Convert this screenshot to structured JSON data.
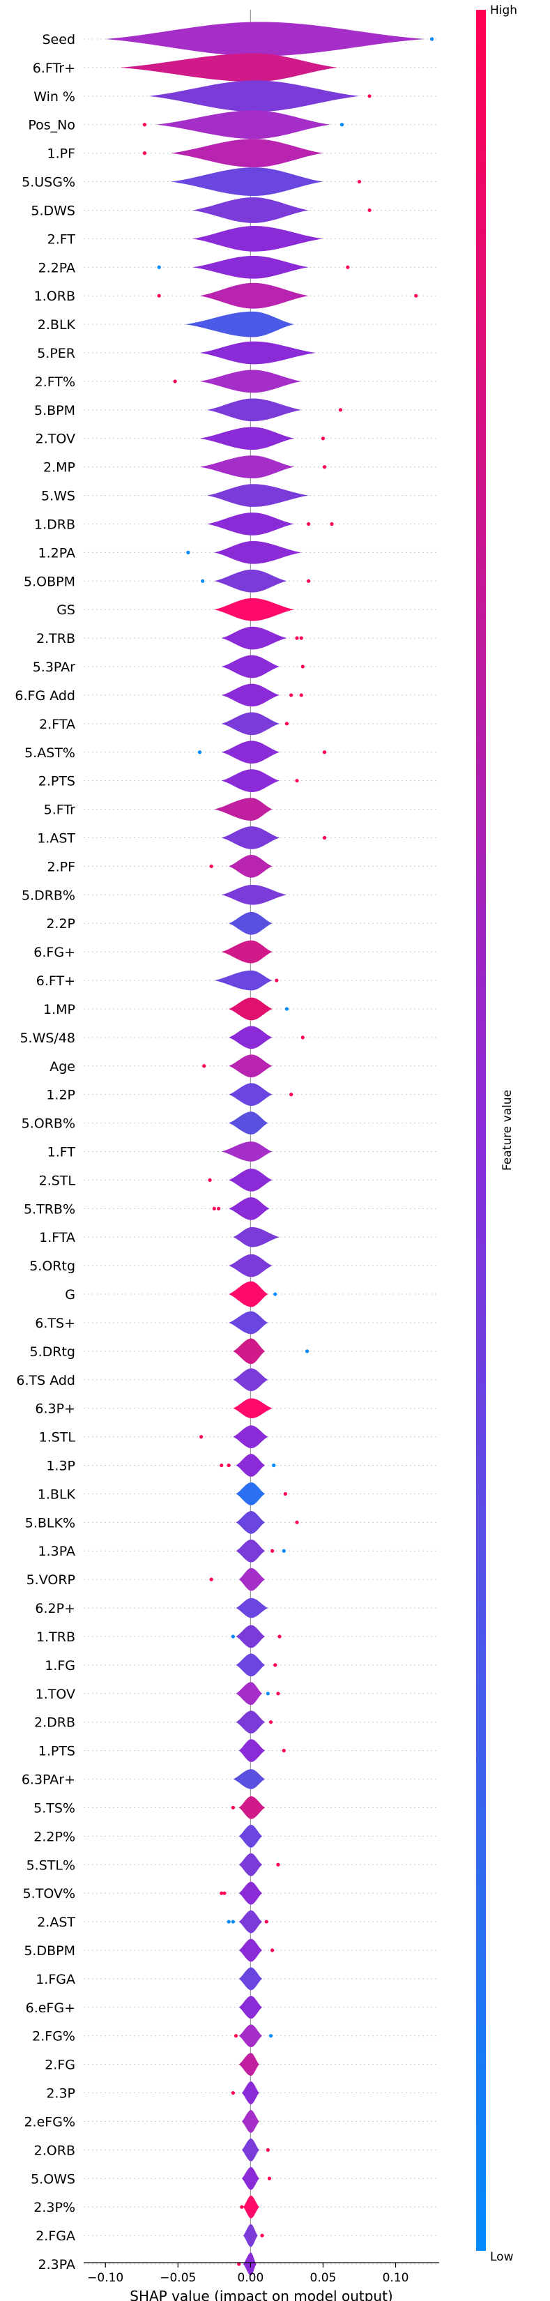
{
  "chart_data": {
    "type": "violin",
    "xlabel": "SHAP value (impact on model output)",
    "xlim": [
      -0.115,
      0.13
    ],
    "xticks": [
      -0.1,
      -0.05,
      0.0,
      0.05,
      0.1
    ],
    "xtick_labels": [
      "−0.10",
      "−0.05",
      "0.00",
      "0.05",
      "0.10"
    ],
    "colorbar": {
      "label": "Feature value",
      "high": "High",
      "low": "Low",
      "colors": {
        "low": "#008afb",
        "mid": "#8b2bd8",
        "high": "#ff0052"
      }
    },
    "features": [
      {
        "name": "Seed",
        "min": -0.1,
        "max": 0.12,
        "width": 0.6,
        "color": "#a52ec8",
        "outliers": [
          {
            "x": 0.125,
            "c": "#008afb"
          }
        ]
      },
      {
        "name": "6.FTr+",
        "min": -0.09,
        "max": 0.06,
        "width": 0.5,
        "color": "#d01a8a",
        "outliers": []
      },
      {
        "name": "Win %",
        "min": -0.07,
        "max": 0.075,
        "width": 0.55,
        "color": "#7a3bd8",
        "outliers": [
          {
            "x": 0.082,
            "c": "#ff0052"
          }
        ]
      },
      {
        "name": "Pos_No",
        "min": -0.065,
        "max": 0.055,
        "width": 0.5,
        "color": "#a52ec8",
        "outliers": [
          {
            "x": -0.073,
            "c": "#ff0052"
          },
          {
            "x": 0.063,
            "c": "#008afb"
          }
        ]
      },
      {
        "name": "1.PF",
        "min": -0.055,
        "max": 0.05,
        "width": 0.5,
        "color": "#b824b0",
        "outliers": [
          {
            "x": -0.073,
            "c": "#ff0052"
          }
        ]
      },
      {
        "name": "5.USG%",
        "min": -0.055,
        "max": 0.05,
        "width": 0.5,
        "color": "#6a45e0",
        "outliers": [
          {
            "x": 0.075,
            "c": "#ff0052"
          }
        ]
      },
      {
        "name": "5.DWS",
        "min": -0.04,
        "max": 0.04,
        "width": 0.45,
        "color": "#7a3bd8",
        "outliers": [
          {
            "x": 0.082,
            "c": "#ff0052"
          }
        ]
      },
      {
        "name": "2.FT",
        "min": -0.04,
        "max": 0.05,
        "width": 0.45,
        "color": "#8b2bd8",
        "outliers": []
      },
      {
        "name": "2.2PA",
        "min": -0.04,
        "max": 0.04,
        "width": 0.4,
        "color": "#8b2bd8",
        "outliers": [
          {
            "x": -0.063,
            "c": "#008afb"
          },
          {
            "x": 0.067,
            "c": "#ff0052"
          }
        ]
      },
      {
        "name": "1.ORB",
        "min": -0.035,
        "max": 0.04,
        "width": 0.45,
        "color": "#b824b0",
        "outliers": [
          {
            "x": -0.063,
            "c": "#ff0052"
          },
          {
            "x": 0.114,
            "c": "#ff0052"
          }
        ]
      },
      {
        "name": "2.BLK",
        "min": -0.045,
        "max": 0.03,
        "width": 0.45,
        "color": "#4b5be8",
        "outliers": []
      },
      {
        "name": "5.PER",
        "min": -0.035,
        "max": 0.045,
        "width": 0.4,
        "color": "#8b2bd8",
        "outliers": []
      },
      {
        "name": "2.FT%",
        "min": -0.035,
        "max": 0.035,
        "width": 0.4,
        "color": "#a52ec8",
        "outliers": [
          {
            "x": -0.052,
            "c": "#ff0052"
          }
        ]
      },
      {
        "name": "5.BPM",
        "min": -0.03,
        "max": 0.035,
        "width": 0.4,
        "color": "#7a3bd8",
        "outliers": [
          {
            "x": 0.062,
            "c": "#ff0052"
          }
        ]
      },
      {
        "name": "2.TOV",
        "min": -0.035,
        "max": 0.03,
        "width": 0.4,
        "color": "#8b2bd8",
        "outliers": [
          {
            "x": 0.05,
            "c": "#ff0052"
          }
        ]
      },
      {
        "name": "2.MP",
        "min": -0.035,
        "max": 0.03,
        "width": 0.4,
        "color": "#a52ec8",
        "outliers": [
          {
            "x": 0.051,
            "c": "#ff0052"
          }
        ]
      },
      {
        "name": "5.WS",
        "min": -0.03,
        "max": 0.04,
        "width": 0.4,
        "color": "#7a3bd8",
        "outliers": []
      },
      {
        "name": "1.DRB",
        "min": -0.03,
        "max": 0.03,
        "width": 0.4,
        "color": "#8b2bd8",
        "outliers": [
          {
            "x": 0.04,
            "c": "#ff0052"
          },
          {
            "x": 0.056,
            "c": "#ff0052"
          }
        ]
      },
      {
        "name": "1.2PA",
        "min": -0.025,
        "max": 0.035,
        "width": 0.4,
        "color": "#8b2bd8",
        "outliers": [
          {
            "x": -0.043,
            "c": "#008afb"
          }
        ]
      },
      {
        "name": "5.OBPM",
        "min": -0.025,
        "max": 0.025,
        "width": 0.4,
        "color": "#7a3bd8",
        "outliers": [
          {
            "x": -0.033,
            "c": "#008afb"
          },
          {
            "x": 0.04,
            "c": "#ff0052"
          }
        ]
      },
      {
        "name": "GS",
        "min": -0.025,
        "max": 0.03,
        "width": 0.4,
        "color": "#ff0a6a",
        "outliers": []
      },
      {
        "name": "2.TRB",
        "min": -0.02,
        "max": 0.025,
        "width": 0.4,
        "color": "#8b2bd8",
        "outliers": [
          {
            "x": 0.032,
            "c": "#ff0052"
          },
          {
            "x": 0.035,
            "c": "#ff0052"
          }
        ]
      },
      {
        "name": "5.3PAr",
        "min": -0.02,
        "max": 0.02,
        "width": 0.4,
        "color": "#8b2bd8",
        "outliers": [
          {
            "x": 0.036,
            "c": "#ff0052"
          }
        ]
      },
      {
        "name": "6.FG Add",
        "min": -0.02,
        "max": 0.02,
        "width": 0.4,
        "color": "#8b2bd8",
        "outliers": [
          {
            "x": 0.028,
            "c": "#ff0052"
          },
          {
            "x": 0.035,
            "c": "#ff0052"
          }
        ]
      },
      {
        "name": "2.FTA",
        "min": -0.02,
        "max": 0.02,
        "width": 0.4,
        "color": "#7a3bd8",
        "outliers": [
          {
            "x": 0.025,
            "c": "#ff0052"
          }
        ]
      },
      {
        "name": "5.AST%",
        "min": -0.02,
        "max": 0.02,
        "width": 0.4,
        "color": "#8b2bd8",
        "outliers": [
          {
            "x": -0.035,
            "c": "#008afb"
          },
          {
            "x": 0.051,
            "c": "#ff0052"
          }
        ]
      },
      {
        "name": "2.PTS",
        "min": -0.02,
        "max": 0.02,
        "width": 0.4,
        "color": "#8b2bd8",
        "outliers": [
          {
            "x": 0.032,
            "c": "#ff0052"
          }
        ]
      },
      {
        "name": "5.FTr",
        "min": -0.025,
        "max": 0.015,
        "width": 0.4,
        "color": "#c020a0",
        "outliers": []
      },
      {
        "name": "1.AST",
        "min": -0.02,
        "max": 0.02,
        "width": 0.4,
        "color": "#7a3bd8",
        "outliers": [
          {
            "x": 0.051,
            "c": "#ff0052"
          }
        ]
      },
      {
        "name": "2.PF",
        "min": -0.015,
        "max": 0.015,
        "width": 0.4,
        "color": "#b824b0",
        "outliers": [
          {
            "x": -0.027,
            "c": "#ff0052"
          }
        ]
      },
      {
        "name": "5.DRB%",
        "min": -0.02,
        "max": 0.025,
        "width": 0.35,
        "color": "#7a3bd8",
        "outliers": []
      },
      {
        "name": "2.2P",
        "min": -0.015,
        "max": 0.015,
        "width": 0.4,
        "color": "#5a50e0",
        "outliers": []
      },
      {
        "name": "6.FG+",
        "min": -0.02,
        "max": 0.015,
        "width": 0.4,
        "color": "#d01a8a",
        "outliers": []
      },
      {
        "name": "6.FT+",
        "min": -0.025,
        "max": 0.015,
        "width": 0.35,
        "color": "#6a45e0",
        "outliers": [
          {
            "x": 0.018,
            "c": "#ff0052"
          }
        ]
      },
      {
        "name": "1.MP",
        "min": -0.015,
        "max": 0.015,
        "width": 0.4,
        "color": "#e0106e",
        "outliers": [
          {
            "x": 0.025,
            "c": "#008afb"
          }
        ]
      },
      {
        "name": "5.WS/48",
        "min": -0.015,
        "max": 0.015,
        "width": 0.4,
        "color": "#8b2bd8",
        "outliers": [
          {
            "x": 0.036,
            "c": "#ff0052"
          }
        ]
      },
      {
        "name": "Age",
        "min": -0.015,
        "max": 0.015,
        "width": 0.4,
        "color": "#b824b0",
        "outliers": [
          {
            "x": -0.032,
            "c": "#ff0052"
          }
        ]
      },
      {
        "name": "1.2P",
        "min": -0.015,
        "max": 0.015,
        "width": 0.4,
        "color": "#6a45e0",
        "outliers": [
          {
            "x": 0.028,
            "c": "#ff0052"
          }
        ]
      },
      {
        "name": "5.ORB%",
        "min": -0.015,
        "max": 0.012,
        "width": 0.4,
        "color": "#5a50e0",
        "outliers": []
      },
      {
        "name": "1.FT",
        "min": -0.02,
        "max": 0.015,
        "width": 0.35,
        "color": "#a52ec8",
        "outliers": []
      },
      {
        "name": "2.STL",
        "min": -0.015,
        "max": 0.015,
        "width": 0.4,
        "color": "#8b2bd8",
        "outliers": [
          {
            "x": -0.028,
            "c": "#ff0052"
          }
        ]
      },
      {
        "name": "5.TRB%",
        "min": -0.015,
        "max": 0.013,
        "width": 0.4,
        "color": "#8b2bd8",
        "outliers": [
          {
            "x": -0.025,
            "c": "#ff0052"
          },
          {
            "x": -0.022,
            "c": "#ff0052"
          }
        ]
      },
      {
        "name": "1.FTA",
        "min": -0.012,
        "max": 0.02,
        "width": 0.35,
        "color": "#7a3bd8",
        "outliers": []
      },
      {
        "name": "5.ORtg",
        "min": -0.015,
        "max": 0.015,
        "width": 0.4,
        "color": "#7a3bd8",
        "outliers": []
      },
      {
        "name": "G",
        "min": -0.015,
        "max": 0.012,
        "width": 0.45,
        "color": "#ff0a6a",
        "outliers": [
          {
            "x": 0.017,
            "c": "#008afb"
          }
        ]
      },
      {
        "name": "6.TS+",
        "min": -0.015,
        "max": 0.012,
        "width": 0.4,
        "color": "#6a45e0",
        "outliers": []
      },
      {
        "name": "5.DRtg",
        "min": -0.012,
        "max": 0.01,
        "width": 0.45,
        "color": "#d01a8a",
        "outliers": [
          {
            "x": 0.039,
            "c": "#008afb"
          }
        ]
      },
      {
        "name": "6.TS Add",
        "min": -0.012,
        "max": 0.012,
        "width": 0.4,
        "color": "#7a3bd8",
        "outliers": []
      },
      {
        "name": "6.3P+",
        "min": -0.012,
        "max": 0.015,
        "width": 0.35,
        "color": "#ff0a6a",
        "outliers": []
      },
      {
        "name": "1.STL",
        "min": -0.012,
        "max": 0.012,
        "width": 0.4,
        "color": "#8b2bd8",
        "outliers": [
          {
            "x": -0.034,
            "c": "#ff0052"
          }
        ]
      },
      {
        "name": "1.3P",
        "min": -0.01,
        "max": 0.01,
        "width": 0.4,
        "color": "#8b2bd8",
        "outliers": [
          {
            "x": -0.02,
            "c": "#ff0052"
          },
          {
            "x": -0.015,
            "c": "#ff0052"
          },
          {
            "x": 0.016,
            "c": "#008afb"
          }
        ]
      },
      {
        "name": "1.BLK",
        "min": -0.01,
        "max": 0.01,
        "width": 0.4,
        "color": "#2a70f0",
        "outliers": [
          {
            "x": 0.024,
            "c": "#ff0052"
          }
        ]
      },
      {
        "name": "5.BLK%",
        "min": -0.01,
        "max": 0.01,
        "width": 0.4,
        "color": "#6a45e0",
        "outliers": [
          {
            "x": 0.032,
            "c": "#ff0052"
          }
        ]
      },
      {
        "name": "1.3PA",
        "min": -0.01,
        "max": 0.01,
        "width": 0.4,
        "color": "#7a3bd8",
        "outliers": [
          {
            "x": 0.015,
            "c": "#ff0052"
          },
          {
            "x": 0.023,
            "c": "#008afb"
          }
        ]
      },
      {
        "name": "5.VORP",
        "min": -0.008,
        "max": 0.01,
        "width": 0.4,
        "color": "#a52ec8",
        "outliers": [
          {
            "x": -0.027,
            "c": "#ff0052"
          }
        ]
      },
      {
        "name": "6.2P+",
        "min": -0.01,
        "max": 0.012,
        "width": 0.35,
        "color": "#6a45e0",
        "outliers": []
      },
      {
        "name": "1.TRB",
        "min": -0.01,
        "max": 0.01,
        "width": 0.4,
        "color": "#7a3bd8",
        "outliers": [
          {
            "x": -0.012,
            "c": "#008afb"
          },
          {
            "x": 0.02,
            "c": "#ff0052"
          }
        ]
      },
      {
        "name": "1.FG",
        "min": -0.01,
        "max": 0.01,
        "width": 0.4,
        "color": "#6a45e0",
        "outliers": [
          {
            "x": 0.017,
            "c": "#ff0052"
          }
        ]
      },
      {
        "name": "1.TOV",
        "min": -0.01,
        "max": 0.008,
        "width": 0.4,
        "color": "#a52ec8",
        "outliers": [
          {
            "x": 0.012,
            "c": "#008afb"
          },
          {
            "x": 0.019,
            "c": "#ff0052"
          }
        ]
      },
      {
        "name": "2.DRB",
        "min": -0.01,
        "max": 0.01,
        "width": 0.4,
        "color": "#7a3bd8",
        "outliers": [
          {
            "x": 0.014,
            "c": "#ff0052"
          }
        ]
      },
      {
        "name": "1.PTS",
        "min": -0.008,
        "max": 0.01,
        "width": 0.4,
        "color": "#8b2bd8",
        "outliers": [
          {
            "x": 0.023,
            "c": "#ff0052"
          }
        ]
      },
      {
        "name": "6.3PAr+",
        "min": -0.012,
        "max": 0.01,
        "width": 0.35,
        "color": "#5a50e0",
        "outliers": []
      },
      {
        "name": "5.TS%",
        "min": -0.008,
        "max": 0.01,
        "width": 0.4,
        "color": "#d01a8a",
        "outliers": [
          {
            "x": -0.012,
            "c": "#ff0052"
          }
        ]
      },
      {
        "name": "2.2P%",
        "min": -0.008,
        "max": 0.008,
        "width": 0.4,
        "color": "#6a45e0",
        "outliers": []
      },
      {
        "name": "5.STL%",
        "min": -0.008,
        "max": 0.008,
        "width": 0.4,
        "color": "#7a3bd8",
        "outliers": [
          {
            "x": 0.019,
            "c": "#ff0052"
          }
        ]
      },
      {
        "name": "5.TOV%",
        "min": -0.008,
        "max": 0.008,
        "width": 0.4,
        "color": "#8b2bd8",
        "outliers": [
          {
            "x": -0.02,
            "c": "#ff0052"
          },
          {
            "x": -0.018,
            "c": "#ff0052"
          }
        ]
      },
      {
        "name": "2.AST",
        "min": -0.008,
        "max": 0.008,
        "width": 0.4,
        "color": "#7a3bd8",
        "outliers": [
          {
            "x": -0.015,
            "c": "#008afb"
          },
          {
            "x": -0.012,
            "c": "#008afb"
          },
          {
            "x": 0.011,
            "c": "#ff0052"
          }
        ]
      },
      {
        "name": "5.DBPM",
        "min": -0.008,
        "max": 0.008,
        "width": 0.4,
        "color": "#8b2bd8",
        "outliers": [
          {
            "x": 0.015,
            "c": "#ff0052"
          }
        ]
      },
      {
        "name": "1.FGA",
        "min": -0.008,
        "max": 0.008,
        "width": 0.4,
        "color": "#6a45e0",
        "outliers": []
      },
      {
        "name": "6.eFG+",
        "min": -0.008,
        "max": 0.008,
        "width": 0.4,
        "color": "#8b2bd8",
        "outliers": []
      },
      {
        "name": "2.FG%",
        "min": -0.008,
        "max": 0.008,
        "width": 0.4,
        "color": "#a52ec8",
        "outliers": [
          {
            "x": -0.01,
            "c": "#ff0052"
          },
          {
            "x": 0.014,
            "c": "#008afb"
          }
        ]
      },
      {
        "name": "2.FG",
        "min": -0.008,
        "max": 0.006,
        "width": 0.4,
        "color": "#c020a0",
        "outliers": []
      },
      {
        "name": "2.3P",
        "min": -0.006,
        "max": 0.006,
        "width": 0.4,
        "color": "#8b2bd8",
        "outliers": [
          {
            "x": -0.012,
            "c": "#ff0052"
          }
        ]
      },
      {
        "name": "2.eFG%",
        "min": -0.006,
        "max": 0.006,
        "width": 0.4,
        "color": "#a52ec8",
        "outliers": []
      },
      {
        "name": "2.ORB",
        "min": -0.006,
        "max": 0.006,
        "width": 0.4,
        "color": "#7a3bd8",
        "outliers": [
          {
            "x": 0.012,
            "c": "#ff0052"
          }
        ]
      },
      {
        "name": "5.OWS",
        "min": -0.006,
        "max": 0.006,
        "width": 0.4,
        "color": "#8b2bd8",
        "outliers": [
          {
            "x": 0.013,
            "c": "#ff0052"
          }
        ]
      },
      {
        "name": "2.3P%",
        "min": -0.005,
        "max": 0.006,
        "width": 0.4,
        "color": "#ff0a6a",
        "outliers": [
          {
            "x": -0.006,
            "c": "#ff0052"
          }
        ]
      },
      {
        "name": "2.FGA",
        "min": -0.005,
        "max": 0.005,
        "width": 0.4,
        "color": "#7a3bd8",
        "outliers": [
          {
            "x": 0.008,
            "c": "#ff0052"
          }
        ]
      },
      {
        "name": "2.3PA",
        "min": -0.005,
        "max": 0.004,
        "width": 0.4,
        "color": "#8b2bd8",
        "outliers": [
          {
            "x": -0.008,
            "c": "#ff0052"
          }
        ]
      }
    ]
  }
}
